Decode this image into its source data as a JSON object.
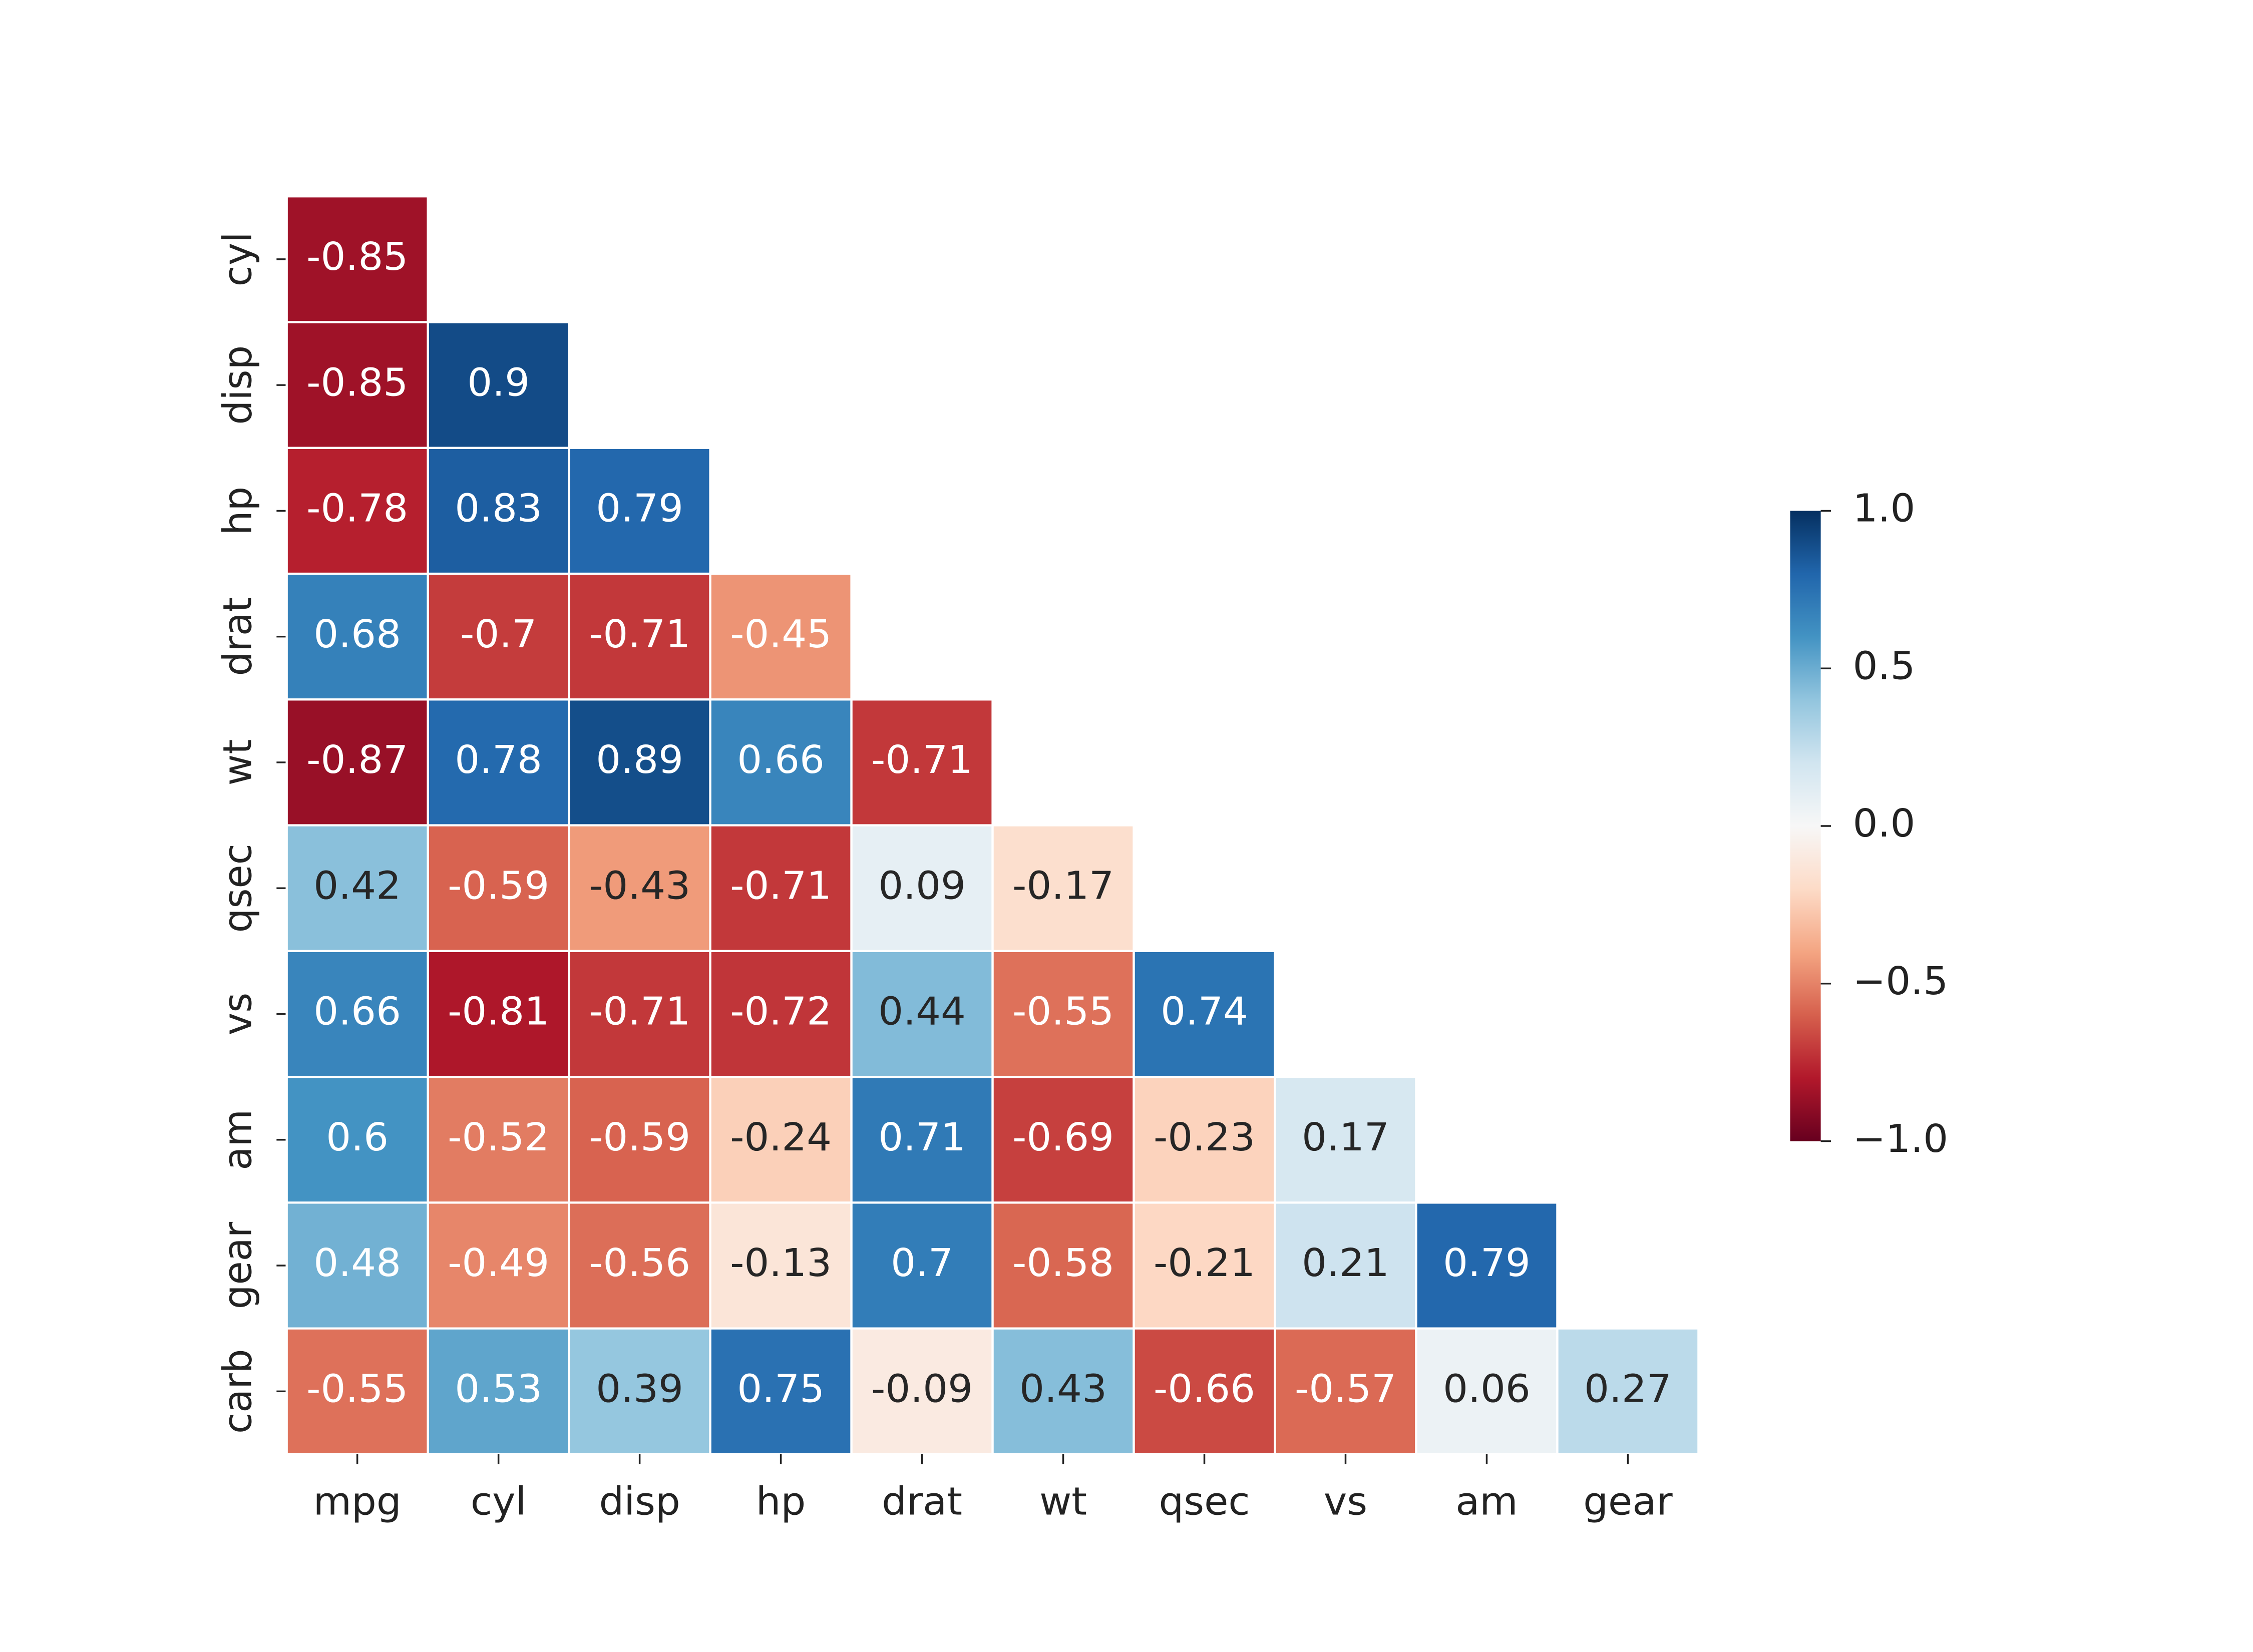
{
  "chart_data": {
    "type": "heatmap",
    "columns": [
      "mpg",
      "cyl",
      "disp",
      "hp",
      "drat",
      "wt",
      "qsec",
      "vs",
      "am",
      "gear"
    ],
    "rows": [
      "cyl",
      "disp",
      "hp",
      "drat",
      "wt",
      "qsec",
      "vs",
      "am",
      "gear",
      "carb"
    ],
    "values": [
      [
        -0.85,
        null,
        null,
        null,
        null,
        null,
        null,
        null,
        null,
        null
      ],
      [
        -0.85,
        0.9,
        null,
        null,
        null,
        null,
        null,
        null,
        null,
        null
      ],
      [
        -0.78,
        0.83,
        0.79,
        null,
        null,
        null,
        null,
        null,
        null,
        null
      ],
      [
        0.68,
        -0.7,
        -0.71,
        -0.45,
        null,
        null,
        null,
        null,
        null,
        null
      ],
      [
        -0.87,
        0.78,
        0.89,
        0.66,
        -0.71,
        null,
        null,
        null,
        null,
        null
      ],
      [
        0.42,
        -0.59,
        -0.43,
        -0.71,
        0.09,
        -0.17,
        null,
        null,
        null,
        null
      ],
      [
        0.66,
        -0.81,
        -0.71,
        -0.72,
        0.44,
        -0.55,
        0.74,
        null,
        null,
        null
      ],
      [
        0.6,
        -0.52,
        -0.59,
        -0.24,
        0.71,
        -0.69,
        -0.23,
        0.17,
        null,
        null
      ],
      [
        0.48,
        -0.49,
        -0.56,
        -0.13,
        0.7,
        -0.58,
        -0.21,
        0.21,
        0.79,
        null
      ],
      [
        -0.55,
        0.53,
        0.39,
        0.75,
        -0.09,
        0.43,
        -0.66,
        -0.57,
        0.06,
        0.27
      ]
    ],
    "zlim": [
      -1,
      1
    ],
    "colorbar_ticks": [
      {
        "value": 1,
        "label": "1.0"
      },
      {
        "value": 0.5,
        "label": "0.5"
      },
      {
        "value": 0,
        "label": "0.0"
      },
      {
        "value": -0.5,
        "label": "−0.5"
      },
      {
        "value": -1,
        "label": "−1.0"
      }
    ],
    "colormap": [
      "#67001f",
      "#b2182b",
      "#d6604d",
      "#f4a582",
      "#fddbc7",
      "#f7f7f7",
      "#d1e5f0",
      "#92c5de",
      "#4393c3",
      "#2166ac",
      "#053061"
    ]
  }
}
